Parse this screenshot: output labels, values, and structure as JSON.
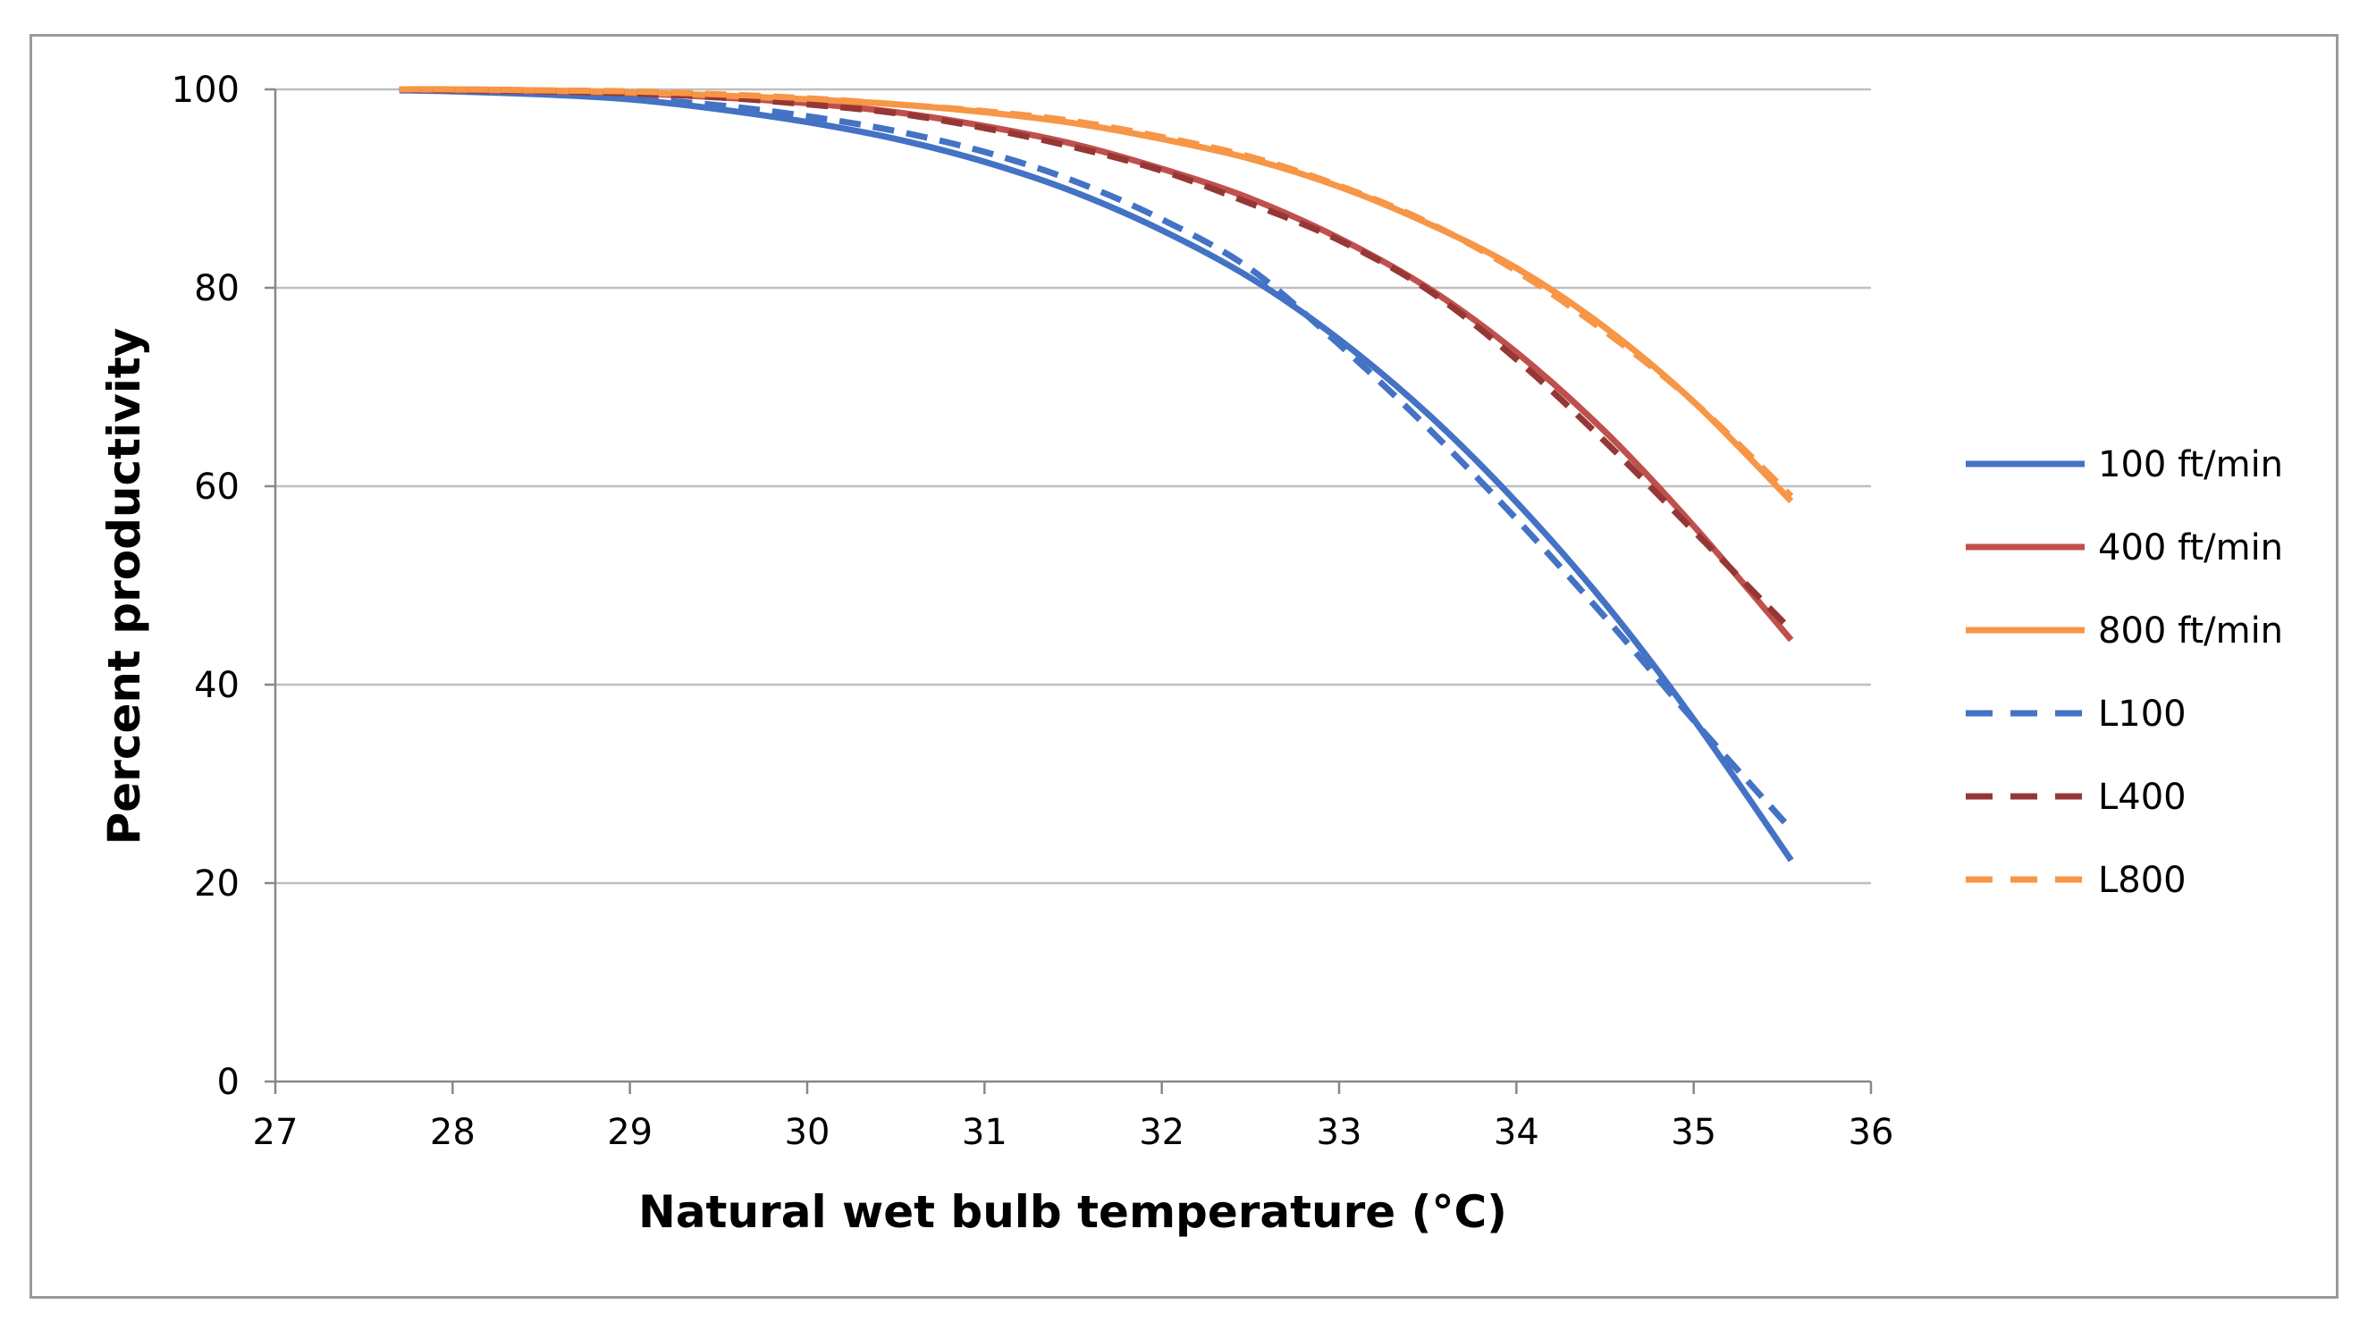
{
  "chart_data": {
    "type": "line",
    "title": "",
    "xlabel": "Natural wet bulb temperature (°C)",
    "ylabel": "Percent productivity",
    "xlim": [
      27,
      36
    ],
    "ylim": [
      0,
      100
    ],
    "xticks": [
      27,
      28,
      29,
      30,
      31,
      32,
      33,
      34,
      35,
      36
    ],
    "yticks": [
      0,
      20,
      40,
      60,
      80,
      100
    ],
    "grid": "horizontal",
    "legend_position": "right",
    "x": [
      27.7,
      28,
      28.5,
      29,
      29.5,
      30,
      30.5,
      31,
      31.5,
      32,
      32.5,
      33,
      33.5,
      34,
      34.5,
      35,
      35.55
    ],
    "series": [
      {
        "name": "100 ft/min",
        "style": "solid",
        "color": "#4472c4",
        "values": [
          99.9,
          99.8,
          99.5,
          99,
          98,
          96.7,
          95,
          92.7,
          89.7,
          85.8,
          81,
          74.8,
          67.3,
          58.4,
          48.2,
          36.5,
          22.3
        ]
      },
      {
        "name": "400 ft/min",
        "style": "solid",
        "color": "#c0504d",
        "values": [
          100,
          99.9,
          99.8,
          99.6,
          99.2,
          98.6,
          97.7,
          96.3,
          94.5,
          92,
          89,
          85,
          80,
          73.5,
          65.5,
          56,
          44.5
        ]
      },
      {
        "name": "800 ft/min",
        "style": "solid",
        "color": "#f79646",
        "values": [
          100,
          100,
          99.9,
          99.7,
          99.4,
          99,
          98.5,
          97.7,
          96.6,
          95,
          93,
          90.2,
          86.5,
          82,
          76,
          68.5,
          58.5
        ]
      },
      {
        "name": "L100",
        "style": "dashed",
        "color": "#4472c4",
        "values": [
          100,
          99.9,
          99.6,
          99.1,
          98.4,
          97.3,
          95.8,
          93.7,
          90.8,
          86.9,
          81.9,
          74.3,
          65.9,
          56.7,
          46.8,
          36.4,
          25.4
        ]
      },
      {
        "name": "L400",
        "style": "dashed",
        "color": "#953735",
        "values": [
          100,
          99.9,
          99.8,
          99.6,
          99.2,
          98.5,
          97.6,
          96.1,
          94.2,
          91.8,
          88.5,
          84.8,
          79.8,
          72.8,
          64.5,
          55.5,
          45.5
        ]
      },
      {
        "name": "L800",
        "style": "dashed",
        "color": "#f79646",
        "values": [
          100,
          100,
          99.9,
          99.8,
          99.5,
          99.1,
          98.5,
          97.8,
          96.8,
          95.2,
          93.2,
          90.3,
          86.6,
          81.7,
          75.6,
          68.5,
          59
        ]
      }
    ]
  }
}
